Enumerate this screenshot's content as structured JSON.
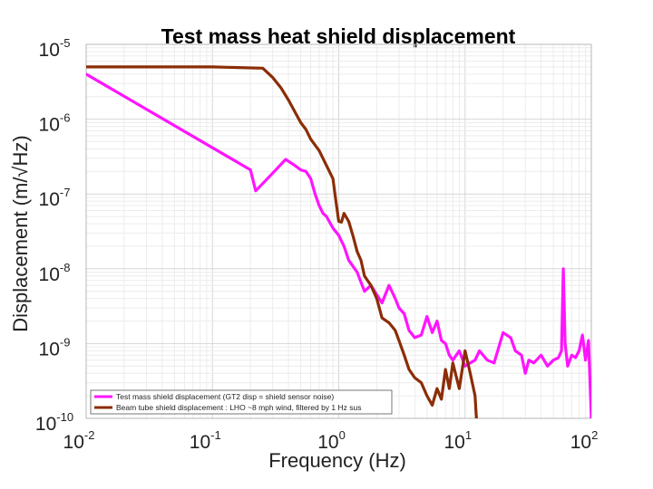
{
  "chart_data": {
    "type": "line",
    "title": "Test mass heat shield displacement",
    "xlabel": "Frequency (Hz)",
    "ylabel": "Displacement (m/√Hz)",
    "xscale": "log",
    "yscale": "log",
    "xlim": [
      0.01,
      100
    ],
    "ylim": [
      1e-10,
      1e-05
    ],
    "grid": true,
    "legend_position": "bottom-left",
    "x_ticks": [
      {
        "value": 0.01,
        "base": "10",
        "exp": "-2"
      },
      {
        "value": 0.1,
        "base": "10",
        "exp": "-1"
      },
      {
        "value": 1,
        "base": "10",
        "exp": "0"
      },
      {
        "value": 10,
        "base": "10",
        "exp": "1"
      },
      {
        "value": 100,
        "base": "10",
        "exp": "2"
      }
    ],
    "y_ticks": [
      {
        "value": 1e-05,
        "base": "10",
        "exp": "-5"
      },
      {
        "value": 1e-06,
        "base": "10",
        "exp": "-6"
      },
      {
        "value": 1e-07,
        "base": "10",
        "exp": "-7"
      },
      {
        "value": 1e-08,
        "base": "10",
        "exp": "-8"
      },
      {
        "value": 1e-09,
        "base": "10",
        "exp": "-9"
      },
      {
        "value": 1e-10,
        "base": "10",
        "exp": "-10"
      }
    ],
    "series": [
      {
        "name": "Test mass shield displacement (GT2 disp = shield sensor noise)",
        "color": "#ff14ff",
        "x": [
          0.01,
          0.2,
          0.22,
          0.3,
          0.38,
          0.45,
          0.5,
          0.55,
          0.6,
          0.65,
          0.7,
          0.75,
          0.8,
          0.9,
          1.0,
          1.1,
          1.2,
          1.4,
          1.6,
          1.8,
          2.0,
          2.2,
          2.5,
          2.8,
          3.0,
          3.3,
          3.6,
          4.0,
          4.5,
          5.0,
          5.5,
          6.0,
          6.5,
          7.0,
          7.5,
          8.0,
          9.0,
          10,
          11,
          12,
          13,
          15,
          17,
          20,
          23,
          25,
          28,
          30,
          32,
          35,
          40,
          45,
          50,
          55,
          58,
          60,
          62,
          65,
          70,
          75,
          80,
          85,
          90,
          95,
          100
        ],
        "y": [
          4e-06,
          2.1e-07,
          1.1e-07,
          1.9e-07,
          2.9e-07,
          2.4e-07,
          2.1e-07,
          2e-07,
          1.6e-07,
          1e-07,
          7e-08,
          5.5e-08,
          5e-08,
          3.5e-08,
          2.8e-08,
          2e-08,
          1.3e-08,
          9e-09,
          5e-09,
          6e-09,
          4.5e-09,
          3.5e-09,
          6e-09,
          4e-09,
          3e-09,
          2.5e-09,
          1.5e-09,
          1.2e-09,
          1.3e-09,
          2.3e-09,
          1.4e-09,
          2e-09,
          1.1e-09,
          1e-09,
          7e-10,
          6e-10,
          8e-10,
          5e-10,
          5.5e-10,
          6e-10,
          8e-10,
          6e-10,
          5.5e-10,
          1.4e-09,
          1.2e-09,
          8e-10,
          7e-10,
          4e-10,
          6e-10,
          5.5e-10,
          7e-10,
          5e-10,
          6e-10,
          6.5e-10,
          8e-10,
          1e-08,
          1e-09,
          5e-10,
          7e-10,
          6.5e-10,
          8e-10,
          1.3e-09,
          6e-10,
          1.1e-09,
          1e-10
        ]
      },
      {
        "name": "Beam tube shield displacement : LHO ~8 mph wind, filtered by 1 Hz sus",
        "color": "#8b2d06",
        "x": [
          0.01,
          0.1,
          0.25,
          0.3,
          0.35,
          0.4,
          0.45,
          0.5,
          0.55,
          0.6,
          0.7,
          0.8,
          0.9,
          0.95,
          1.0,
          1.05,
          1.1,
          1.2,
          1.3,
          1.4,
          1.5,
          1.6,
          1.8,
          2.0,
          2.2,
          2.5,
          2.8,
          3.0,
          3.3,
          3.6,
          4.0,
          4.5,
          5.0,
          5.5,
          6.0,
          6.5,
          7.0,
          7.5,
          8.0,
          9.0,
          10,
          11,
          12,
          12.3
        ],
        "y": [
          5e-06,
          5e-06,
          4.8e-06,
          3.6e-06,
          2.6e-06,
          1.8e-06,
          1.25e-06,
          9e-07,
          7.3e-07,
          5.4e-07,
          3.8e-07,
          2.4e-07,
          1.6e-07,
          8e-08,
          4.3e-08,
          4.2e-08,
          5.5e-08,
          4.3e-08,
          2.7e-08,
          1.7e-08,
          1.3e-08,
          8e-09,
          6e-09,
          4e-09,
          2.2e-09,
          1.9e-09,
          1.5e-09,
          1.1e-09,
          7e-10,
          4.5e-10,
          3.5e-10,
          3e-10,
          2e-10,
          1.5e-10,
          2.5e-10,
          1.8e-10,
          4.5e-10,
          2.5e-10,
          5.5e-10,
          2.5e-10,
          8e-10,
          4e-10,
          2e-10,
          1e-10
        ]
      }
    ]
  }
}
